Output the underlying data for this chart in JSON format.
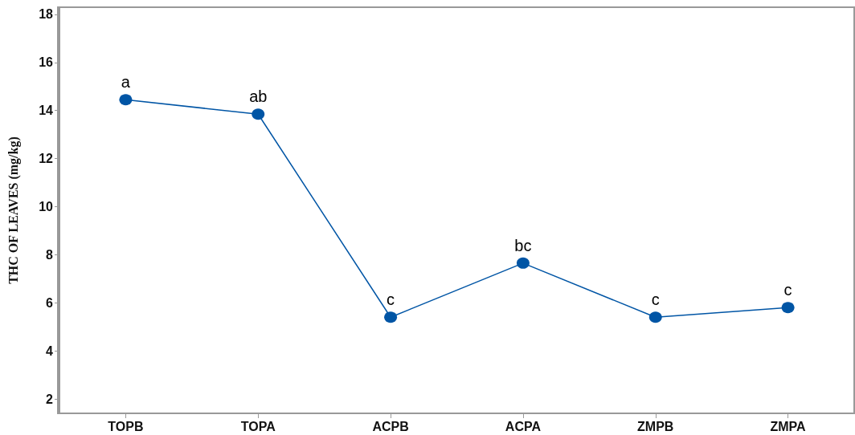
{
  "chart_data": {
    "type": "line",
    "ylabel": "THC OF LEAVES (mg/kg)",
    "categories": [
      "TOPB",
      "TOPA",
      "ACPB",
      "ACPA",
      "ZMPB",
      "ZMPA"
    ],
    "series": [
      {
        "color": "#0055a5",
        "values": [
          14.45,
          13.85,
          5.4,
          7.65,
          5.4,
          5.8
        ]
      }
    ],
    "ylim": [
      1.4,
      18.3
    ],
    "yticks": [
      2,
      4,
      6,
      8,
      10,
      12,
      14,
      16,
      18
    ],
    "grid": false,
    "marker": "circle",
    "line_style": "solid",
    "annotations": [
      {
        "text": "a",
        "x": "TOPB",
        "y": 14.45
      },
      {
        "text": "ab",
        "x": "TOPA",
        "y": 13.85
      },
      {
        "text": "c",
        "x": "ACPB",
        "y": 5.4
      },
      {
        "text": "bc",
        "x": "ACPA",
        "y": 7.65
      },
      {
        "text": "c",
        "x": "ZMPB",
        "y": 5.4
      },
      {
        "text": "c",
        "x": "ZMPA",
        "y": 5.8
      }
    ]
  }
}
